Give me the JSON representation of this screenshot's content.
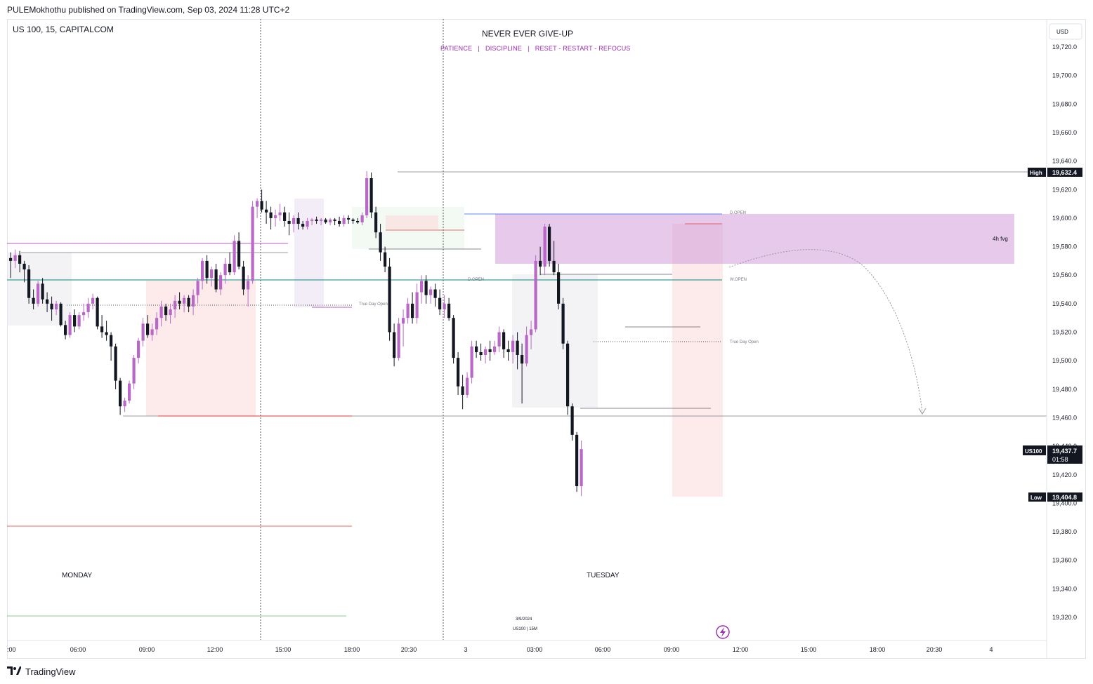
{
  "header": {
    "published": "PULEMokhothu published on TradingView.com, Sep 03, 2024 11:28 UTC+2"
  },
  "symbol": "US 100, 15, CAPITALCOM",
  "title": "NEVER EVER GIVE-UP",
  "subtitle": "PATIENCE   |   DISCIPLINE   |   RESET - RESTART - REFOCUS",
  "footer": {
    "brand": "TradingView"
  },
  "chart_data": {
    "type": "candlestick",
    "currency": "USD",
    "ylim": [
      19300,
      19730
    ],
    "y_ticks": [
      "19,720.0",
      "19,700.0",
      "19,680.0",
      "19,660.0",
      "19,640.0",
      "19,620.0",
      "19,600.0",
      "19,580.0",
      "19,560.0",
      "19,540.0",
      "19,520.0",
      "19,500.0",
      "19,480.0",
      "19,460.0",
      "19,440.0",
      "19,420.0",
      "19,400.0",
      "19,380.0",
      "19,360.0",
      "19,340.0",
      "19,320.0"
    ],
    "x_ticks": [
      ":00",
      "06:00",
      "09:00",
      "12:00",
      "15:00",
      "18:00",
      "20:30",
      "3",
      "03:00",
      "06:00",
      "09:00",
      "12:00",
      "15:00",
      "18:00",
      "20:30",
      "4"
    ],
    "price_labels": {
      "high": {
        "tag": "High",
        "value": "19,632.4",
        "price": 19632.4
      },
      "current": {
        "tag": "US100",
        "value": "19,437.7",
        "timer": "01:58",
        "price": 19437.7
      },
      "low": {
        "tag": "Low",
        "value": "19,404.8",
        "price": 19404.8
      }
    },
    "annotations": {
      "day_labels": [
        "MONDAY",
        "TUESDAY"
      ],
      "true_day_open": "True Day Open",
      "d_open": "D.OPEN",
      "w_open": "W.OPEN",
      "fvg": "4h fvg",
      "date_stamp": "3/9/2024",
      "interval_stamp": "US100 | 15M"
    },
    "colors": {
      "bull": "#ba68c8",
      "bear": "#131722",
      "fvg": "#ce93d8",
      "accent": "#9c27b0"
    },
    "candles": [
      [
        19572,
        19576,
        19558,
        19570
      ],
      [
        19570,
        19578,
        19565,
        19574
      ],
      [
        19574,
        19577,
        19562,
        19568
      ],
      [
        19568,
        19570,
        19555,
        19564
      ],
      [
        19564,
        19567,
        19540,
        19544
      ],
      [
        19544,
        19550,
        19536,
        19540
      ],
      [
        19540,
        19556,
        19538,
        19554
      ],
      [
        19554,
        19558,
        19540,
        19543
      ],
      [
        19543,
        19548,
        19534,
        19540
      ],
      [
        19540,
        19545,
        19528,
        19536
      ],
      [
        19536,
        19542,
        19532,
        19540
      ],
      [
        19540,
        19541,
        19524,
        19525
      ],
      [
        19525,
        19528,
        19515,
        19518
      ],
      [
        19518,
        19534,
        19516,
        19532
      ],
      [
        19532,
        19536,
        19520,
        19524
      ],
      [
        19524,
        19534,
        19522,
        19532
      ],
      [
        19532,
        19540,
        19528,
        19534
      ],
      [
        19534,
        19544,
        19530,
        19540
      ],
      [
        19540,
        19547,
        19536,
        19544
      ],
      [
        19544,
        19545,
        19522,
        19524
      ],
      [
        19524,
        19532,
        19516,
        19520
      ],
      [
        19520,
        19528,
        19514,
        19518
      ],
      [
        19518,
        19520,
        19500,
        19510
      ],
      [
        19510,
        19512,
        19480,
        19486
      ],
      [
        19486,
        19488,
        19462,
        19468
      ],
      [
        19468,
        19474,
        19464,
        19472
      ],
      [
        19472,
        19486,
        19470,
        19484
      ],
      [
        19484,
        19504,
        19480,
        19502
      ],
      [
        19502,
        19516,
        19498,
        19514
      ],
      [
        19514,
        19530,
        19510,
        19526
      ],
      [
        19526,
        19532,
        19516,
        19518
      ],
      [
        19518,
        19526,
        19514,
        19522
      ],
      [
        19522,
        19534,
        19518,
        19530
      ],
      [
        19530,
        19542,
        19524,
        19538
      ],
      [
        19538,
        19540,
        19528,
        19532
      ],
      [
        19532,
        19540,
        19526,
        19536
      ],
      [
        19536,
        19546,
        19530,
        19542
      ],
      [
        19542,
        19548,
        19536,
        19540
      ],
      [
        19540,
        19546,
        19534,
        19544
      ],
      [
        19544,
        19546,
        19534,
        19538
      ],
      [
        19538,
        19550,
        19532,
        19546
      ],
      [
        19546,
        19558,
        19540,
        19556
      ],
      [
        19556,
        19572,
        19550,
        19570
      ],
      [
        19570,
        19574,
        19554,
        19558
      ],
      [
        19558,
        19566,
        19552,
        19564
      ],
      [
        19564,
        19568,
        19548,
        19550
      ],
      [
        19550,
        19562,
        19546,
        19560
      ],
      [
        19560,
        19572,
        19554,
        19568
      ],
      [
        19568,
        19576,
        19560,
        19562
      ],
      [
        19562,
        19588,
        19560,
        19584
      ],
      [
        19584,
        19590,
        19564,
        19566
      ],
      [
        19566,
        19570,
        19546,
        19550
      ],
      [
        19550,
        19560,
        19538,
        19556
      ],
      [
        19556,
        19612,
        19554,
        19608
      ],
      [
        19608,
        19614,
        19600,
        19612
      ],
      [
        19612,
        19620,
        19604,
        19606
      ],
      [
        19606,
        19612,
        19596,
        19604
      ],
      [
        19604,
        19608,
        19592,
        19600
      ],
      [
        19600,
        19606,
        19594,
        19602
      ],
      [
        19602,
        19610,
        19598,
        19604
      ],
      [
        19604,
        19608,
        19594,
        19598
      ],
      [
        19598,
        19604,
        19588,
        19596
      ],
      [
        19596,
        19602,
        19590,
        19600
      ],
      [
        19600,
        19604,
        19592,
        19596
      ],
      [
        19596,
        19598,
        19592,
        19594
      ],
      [
        19594,
        19600,
        19592,
        19598
      ],
      [
        19598,
        19600,
        19595,
        19599
      ],
      [
        19599,
        19601,
        19596,
        19598
      ],
      [
        19598,
        19600,
        19595,
        19599
      ],
      [
        19599,
        19600,
        19596,
        19597
      ],
      [
        19597,
        19600,
        19595,
        19599
      ],
      [
        19599,
        19600,
        19595,
        19598
      ],
      [
        19598,
        19601,
        19594,
        19596
      ],
      [
        19596,
        19602,
        19594,
        19600
      ],
      [
        19600,
        19602,
        19596,
        19599
      ],
      [
        19599,
        19600,
        19596,
        19598
      ],
      [
        19598,
        19600,
        19596,
        19597
      ],
      [
        19597,
        19604,
        19595,
        19602
      ],
      [
        19602,
        19633,
        19600,
        19628
      ],
      [
        19628,
        19632,
        19600,
        19604
      ],
      [
        19604,
        19608,
        19586,
        19590
      ],
      [
        19590,
        19596,
        19570,
        19576
      ],
      [
        19576,
        19580,
        19562,
        19566
      ],
      [
        19566,
        19572,
        19514,
        19520
      ],
      [
        19520,
        19526,
        19496,
        19502
      ],
      [
        19502,
        19530,
        19500,
        19526
      ],
      [
        19526,
        19536,
        19510,
        19530
      ],
      [
        19530,
        19544,
        19526,
        19540
      ],
      [
        19540,
        19548,
        19526,
        19530
      ],
      [
        19530,
        19554,
        19526,
        19548
      ],
      [
        19548,
        19560,
        19540,
        19556
      ],
      [
        19556,
        19560,
        19540,
        19546
      ],
      [
        19546,
        19552,
        19540,
        19550
      ],
      [
        19550,
        19554,
        19538,
        19544
      ],
      [
        19544,
        19550,
        19532,
        19536
      ],
      [
        19536,
        19546,
        19530,
        19540
      ],
      [
        19540,
        19544,
        19528,
        19530
      ],
      [
        19530,
        19532,
        19498,
        19502
      ],
      [
        19502,
        19506,
        19476,
        19482
      ],
      [
        19482,
        19490,
        19466,
        19476
      ],
      [
        19476,
        19492,
        19474,
        19488
      ],
      [
        19488,
        19514,
        19484,
        19510
      ],
      [
        19510,
        19514,
        19502,
        19506
      ],
      [
        19506,
        19512,
        19500,
        19504
      ],
      [
        19504,
        19510,
        19498,
        19508
      ],
      [
        19508,
        19514,
        19500,
        19506
      ],
      [
        19506,
        19514,
        19504,
        19510
      ],
      [
        19510,
        19524,
        19506,
        19520
      ],
      [
        19520,
        19522,
        19502,
        19508
      ],
      [
        19508,
        19514,
        19500,
        19506
      ],
      [
        19506,
        19518,
        19498,
        19514
      ],
      [
        19514,
        19520,
        19494,
        19504
      ],
      [
        19504,
        19512,
        19470,
        19498
      ],
      [
        19498,
        19524,
        19496,
        19518
      ],
      [
        19518,
        19528,
        19508,
        19522
      ],
      [
        19522,
        19574,
        19520,
        19570
      ],
      [
        19570,
        19580,
        19560,
        19566
      ],
      [
        19566,
        19596,
        19560,
        19594
      ],
      [
        19594,
        19596,
        19566,
        19570
      ],
      [
        19570,
        19584,
        19560,
        19562
      ],
      [
        19562,
        19568,
        19536,
        19540
      ],
      [
        19540,
        19544,
        19508,
        19512
      ],
      [
        19512,
        19514,
        19462,
        19468
      ],
      [
        19468,
        19470,
        19444,
        19448
      ],
      [
        19448,
        19450,
        19408,
        19412
      ],
      [
        19412,
        19444,
        19405,
        19438
      ]
    ]
  }
}
